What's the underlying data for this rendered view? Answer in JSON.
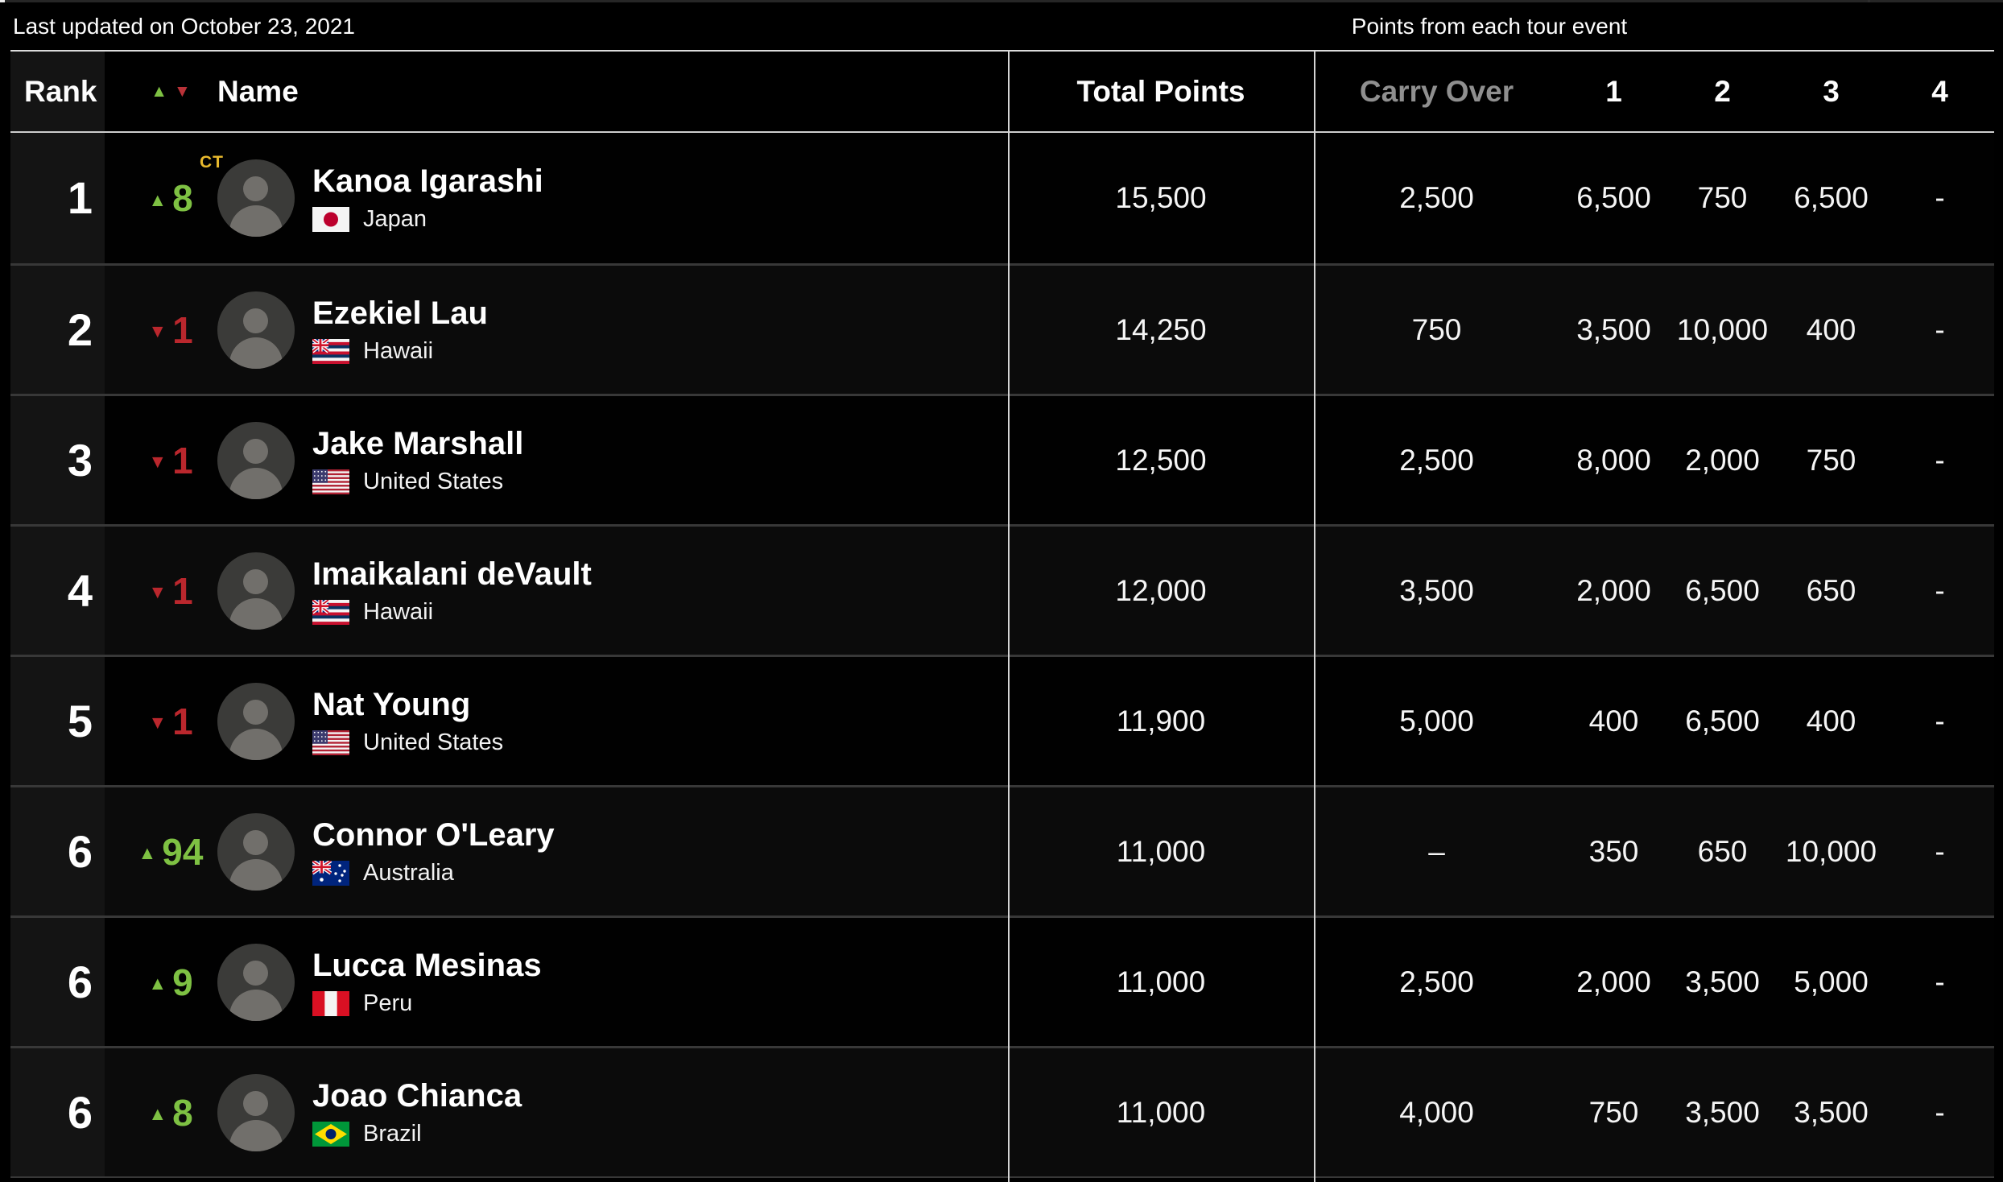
{
  "topbar": {
    "last_updated": "Last updated on October 23, 2021",
    "points_note": "Points from each tour event"
  },
  "header": {
    "rank": "Rank",
    "name": "Name",
    "total": "Total Points",
    "carry": "Carry Over",
    "events": [
      "1",
      "2",
      "3",
      "4"
    ]
  },
  "colors": {
    "up_green": "#7ec143",
    "down_red": "#ba272d",
    "ct_gold": "#e8b92d",
    "divider_light": "#d4d4d4",
    "divider_dark": "#383838"
  },
  "rows": [
    {
      "rank": "1",
      "change_dir": "up",
      "change": "8",
      "badge": "CT",
      "name": "Kanoa Igarashi",
      "country": "Japan",
      "flag": "japan",
      "total": "15,500",
      "carry": "2,500",
      "events": [
        "6,500",
        "750",
        "6,500",
        "-"
      ]
    },
    {
      "rank": "2",
      "change_dir": "down",
      "change": "1",
      "badge": "",
      "name": "Ezekiel Lau",
      "country": "Hawaii",
      "flag": "hawaii",
      "total": "14,250",
      "carry": "750",
      "events": [
        "3,500",
        "10,000",
        "400",
        "-"
      ]
    },
    {
      "rank": "3",
      "change_dir": "down",
      "change": "1",
      "badge": "",
      "name": "Jake Marshall",
      "country": "United States",
      "flag": "us",
      "total": "12,500",
      "carry": "2,500",
      "events": [
        "8,000",
        "2,000",
        "750",
        "-"
      ]
    },
    {
      "rank": "4",
      "change_dir": "down",
      "change": "1",
      "badge": "",
      "name": "Imaikalani deVault",
      "country": "Hawaii",
      "flag": "hawaii",
      "total": "12,000",
      "carry": "3,500",
      "events": [
        "2,000",
        "6,500",
        "650",
        "-"
      ]
    },
    {
      "rank": "5",
      "change_dir": "down",
      "change": "1",
      "badge": "",
      "name": "Nat Young",
      "country": "United States",
      "flag": "us",
      "total": "11,900",
      "carry": "5,000",
      "events": [
        "400",
        "6,500",
        "400",
        "-"
      ]
    },
    {
      "rank": "6",
      "change_dir": "up",
      "change": "94",
      "badge": "",
      "name": "Connor O'Leary",
      "country": "Australia",
      "flag": "australia",
      "total": "11,000",
      "carry": "–",
      "events": [
        "350",
        "650",
        "10,000",
        "-"
      ]
    },
    {
      "rank": "6",
      "change_dir": "up",
      "change": "9",
      "badge": "",
      "name": "Lucca Mesinas",
      "country": "Peru",
      "flag": "peru",
      "total": "11,000",
      "carry": "2,500",
      "events": [
        "2,000",
        "3,500",
        "5,000",
        "-"
      ]
    },
    {
      "rank": "6",
      "change_dir": "up",
      "change": "8",
      "badge": "",
      "name": "Joao Chianca",
      "country": "Brazil",
      "flag": "brazil",
      "total": "11,000",
      "carry": "4,000",
      "events": [
        "750",
        "3,500",
        "3,500",
        "-"
      ]
    }
  ]
}
